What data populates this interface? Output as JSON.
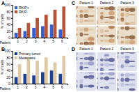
{
  "chart_data": [
    {
      "type": "bar",
      "panel": "A",
      "y_label": "% of cells",
      "x_label": "Patient",
      "categories": [
        "1",
        "2",
        "3",
        "4",
        "5",
        "6"
      ],
      "series": [
        {
          "name": "RKIP+",
          "color": "#3a5fcd",
          "values": [
            15,
            20,
            30,
            35,
            40,
            25
          ]
        },
        {
          "name": "RKIP-",
          "color": "#b5553a",
          "values": [
            30,
            45,
            60,
            70,
            85,
            95
          ]
        }
      ],
      "ylim": [
        0,
        100
      ],
      "yticks": [
        0,
        20,
        40,
        60,
        80,
        100
      ],
      "legend": "upper left"
    },
    {
      "type": "bar",
      "panel": "B",
      "y_label": "% of cells",
      "x_label": "Patient",
      "categories": [
        "1",
        "2",
        "3",
        "4",
        "5",
        "6"
      ],
      "series": [
        {
          "name": "Primary tumor",
          "color": "#1f3f8f",
          "values": [
            20,
            30,
            25,
            35,
            40,
            30
          ]
        },
        {
          "name": "Metastasis",
          "color": "#e0c9a6",
          "values": [
            60,
            75,
            70,
            80,
            65,
            85
          ]
        }
      ],
      "ylim": [
        0,
        100
      ],
      "yticks": [
        0,
        20,
        40,
        60,
        80,
        100
      ],
      "legend": "upper left"
    }
  ],
  "images": [
    {
      "panel": "C",
      "columns": [
        "Patient 1",
        "Patient 2",
        "Patient 3"
      ]
    },
    {
      "panel": "D",
      "columns": [
        "Patient 1",
        "Patient 2",
        "Patient 3"
      ]
    }
  ]
}
